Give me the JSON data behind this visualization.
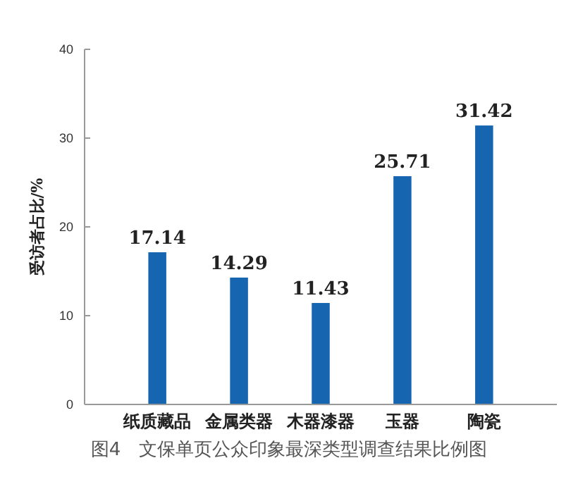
{
  "chart_data": {
    "type": "bar",
    "title": "图4　文保单页公众印象最深类型调查结果比例图",
    "ylabel": "受访者占比/%",
    "categories": [
      "纸质藏品",
      "金属类器",
      "木器漆器",
      "玉器",
      "陶瓷"
    ],
    "values": [
      17.14,
      14.29,
      11.43,
      25.71,
      31.42
    ],
    "color": "#1565b0",
    "ylim": [
      0,
      40
    ],
    "yticks": [
      0,
      10,
      20,
      30,
      40
    ],
    "grid": false,
    "data_labels": true
  }
}
